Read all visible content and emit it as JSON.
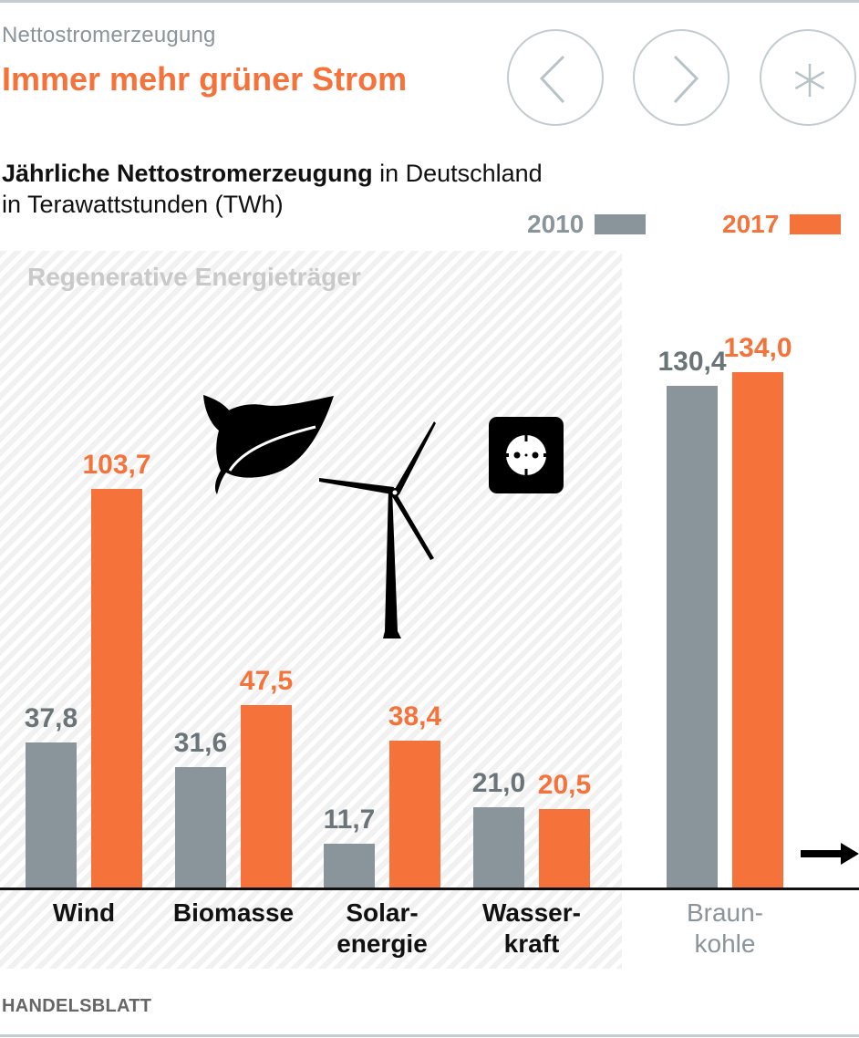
{
  "header": {
    "kicker": "Nettostromerzeugung",
    "title": "Immer mehr grüner Strom",
    "buttons": [
      {
        "name": "previous-button",
        "icon": "chevron-left-icon"
      },
      {
        "name": "next-button",
        "icon": "chevron-right-icon"
      },
      {
        "name": "info-button",
        "icon": "asterisk-icon"
      }
    ]
  },
  "subtitle": {
    "bold": "Jährliche Nettostromerzeugung",
    "rest": " in Deutschland",
    "line2": "in Terawattstunden (TWh)"
  },
  "colors": {
    "series_2010": "#89959a",
    "series_2017": "#f5733a",
    "value_2010": "#6b7478",
    "title": "#f5733a"
  },
  "group_label": "Regenerative Energieträger",
  "icons": [
    "leaf-icon",
    "wind-turbine-icon",
    "power-socket-icon",
    "arrow-right-icon"
  ],
  "chart_data": {
    "type": "bar",
    "title": "Jährliche Nettostromerzeugung in Deutschland",
    "subtitle": "in Terawattstunden (TWh)",
    "xlabel": "",
    "ylabel": "TWh",
    "ylim": [
      0,
      134
    ],
    "grid": false,
    "legend": "top-right",
    "categories": [
      "Wind",
      "Biomasse",
      "Solar-\nenergie",
      "Wasser-\nkraft",
      "Braun-\nkohle"
    ],
    "category_group": [
      "Regenerative Energieträger",
      "Regenerative Energieträger",
      "Regenerative Energieträger",
      "Regenerative Energieträger",
      "other"
    ],
    "series": [
      {
        "name": "2010",
        "values": [
          37.8,
          31.6,
          11.7,
          21.0,
          130.4
        ],
        "labels": [
          "37,8",
          "31,6",
          "11,7",
          "21,0",
          "130,4"
        ]
      },
      {
        "name": "2017",
        "values": [
          103.7,
          47.5,
          38.4,
          20.5,
          134.0
        ],
        "labels": [
          "103,7",
          "47,5",
          "38,4",
          "20,5",
          "134,0"
        ]
      }
    ]
  },
  "footer": {
    "source": "HANDELSBLATT"
  }
}
